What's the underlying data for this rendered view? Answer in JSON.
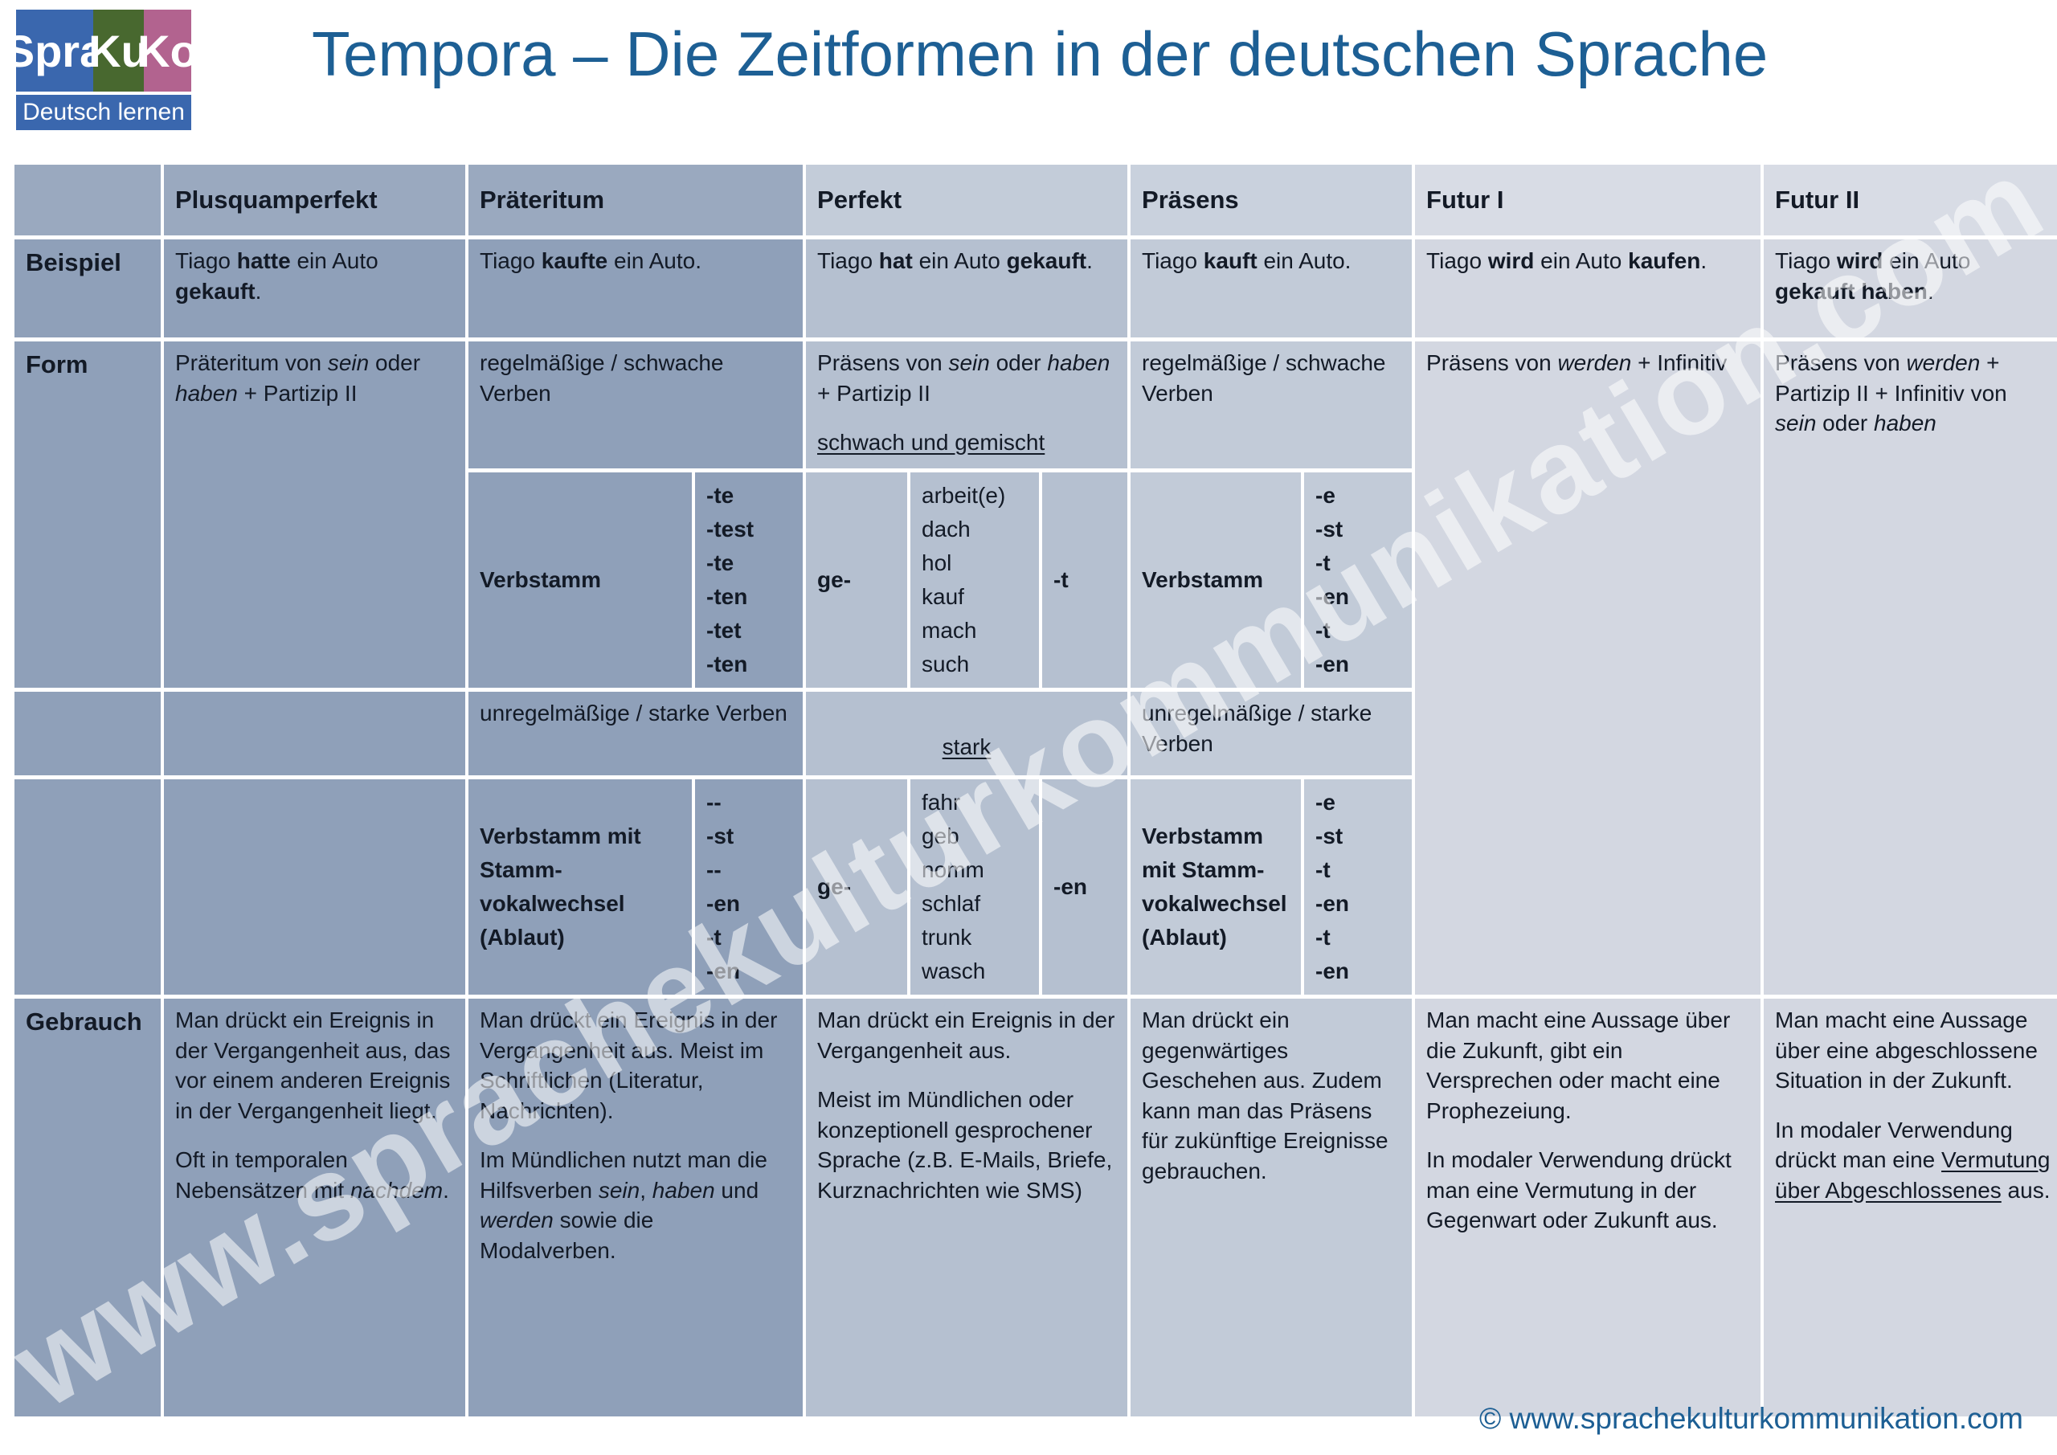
{
  "logo": {
    "part1": "Spra",
    "part2": "Ku",
    "part3": "Ko",
    "subtitle": "Deutsch lernen"
  },
  "title": "Tempora – Die Zeitformen in der deutschen Sprache",
  "watermark": "www.sprachekulturkommunikation.com",
  "footer": "© www.sprachekulturkommunikation.com",
  "colors": {
    "accent-blue": "#1d5f94",
    "text-dark": "#131a26",
    "cell-dark": "#8fa0b9",
    "cell-dark-header": "#9aa9bf",
    "cell-perfekt": "#b5c0d0",
    "cell-perfekt-header": "#c3ccd9",
    "cell-praesens": "#c2cbd8",
    "cell-praesens-header": "#c9d1dd",
    "cell-futur": "#d3d7e1",
    "cell-futur-header": "#d8dce5",
    "logo-blue": "#3a67ae",
    "logo-green": "#48682f",
    "logo-pink": "#b2638f"
  },
  "table": {
    "row_labels": {
      "beispiel": "Beispiel",
      "form": "Form",
      "gebrauch": "Gebrauch"
    },
    "columns": [
      "Plusquamperfekt",
      "Präteritum",
      "Perfekt",
      "Präsens",
      "Futur I",
      "Futur II"
    ],
    "beispiel": {
      "plusquamperfekt": [
        [
          {
            "t": "Tiago "
          },
          {
            "t": "hatte",
            "b": 1
          },
          {
            "t": " ein Auto "
          },
          {
            "t": "gekauft",
            "b": 1
          },
          {
            "t": "."
          }
        ]
      ],
      "praeteritum": [
        [
          {
            "t": "Tiago "
          },
          {
            "t": "kaufte",
            "b": 1
          },
          {
            "t": " ein Auto."
          }
        ]
      ],
      "perfekt": [
        [
          {
            "t": "Tiago "
          },
          {
            "t": "hat",
            "b": 1
          },
          {
            "t": " ein Auto "
          },
          {
            "t": "gekauft",
            "b": 1
          },
          {
            "t": "."
          }
        ]
      ],
      "praesens": [
        [
          {
            "t": "Tiago "
          },
          {
            "t": "kauft",
            "b": 1
          },
          {
            "t": " ein Auto."
          }
        ]
      ],
      "futur1": [
        [
          {
            "t": "Tiago "
          },
          {
            "t": "wird",
            "b": 1
          },
          {
            "t": " ein Auto "
          },
          {
            "t": "kaufen",
            "b": 1
          },
          {
            "t": "."
          }
        ]
      ],
      "futur2": [
        [
          {
            "t": "Tiago "
          },
          {
            "t": "wird",
            "b": 1
          },
          {
            "t": " ein Auto "
          },
          {
            "t": "gekauft haben",
            "b": 1
          },
          {
            "t": "."
          }
        ]
      ]
    },
    "form": {
      "plusquamperfekt": [
        [
          {
            "t": "Präteritum von "
          },
          {
            "t": "sein",
            "i": 1
          },
          {
            "t": " oder "
          },
          {
            "t": "haben",
            "i": 1
          },
          {
            "t": " + Partizip II"
          }
        ]
      ],
      "praeteritum": [
        [
          {
            "t": "regelmäßige / schwache Verben"
          }
        ]
      ],
      "perfekt": [
        [
          {
            "t": "Präsens von "
          },
          {
            "t": "sein",
            "i": 1
          },
          {
            "t": " oder "
          },
          {
            "t": "haben",
            "i": 1
          },
          {
            "t": " + Partizip II"
          }
        ],
        [
          {
            "t": "schwach und gemischt",
            "u": 1
          }
        ]
      ],
      "praesens": [
        [
          {
            "t": "regelmäßige / schwache Verben"
          }
        ]
      ],
      "futur1": [
        [
          {
            "t": "Präsens von "
          },
          {
            "t": "werden",
            "i": 1
          },
          {
            "t": " + Infinitiv"
          }
        ]
      ],
      "futur2": [
        [
          {
            "t": "Präsens von "
          },
          {
            "t": "werden",
            "i": 1
          },
          {
            "t": " + Partizip II + Infinitiv von "
          },
          {
            "t": "sein",
            "i": 1
          },
          {
            "t": " oder "
          },
          {
            "t": "haben",
            "i": 1
          }
        ]
      ]
    },
    "irregular": {
      "praeteritum": [
        [
          {
            "t": "unregelmäßige / starke Verben"
          }
        ]
      ],
      "perfekt": [
        [
          {
            "t": "stark",
            "u": 1
          }
        ]
      ],
      "praesens": [
        [
          {
            "t": "unregelmäßige / starke Verben"
          }
        ]
      ]
    },
    "conjugation": {
      "praeteritum_schwach": {
        "stem_label": "Verbstamm",
        "endings": [
          "-te",
          "-test",
          "-te",
          "-ten",
          "-tet",
          "-ten"
        ]
      },
      "perfekt_schwach": {
        "prefix": "ge-",
        "stems": [
          "arbeit(e)",
          "dach",
          "hol",
          "kauf",
          "mach",
          "such"
        ],
        "suffix": "-t"
      },
      "praesens_schwach": {
        "stem_label": "Verbstamm",
        "endings": [
          "-e",
          "-st",
          "-t",
          "-en",
          "-t",
          "-en"
        ]
      },
      "praeteritum_stark": {
        "stem_label": "Verbstamm mit Stamm-vokalwechsel (Ablaut)",
        "endings": [
          "--",
          "-st",
          "--",
          "-en",
          "-t",
          "-en"
        ]
      },
      "perfekt_stark": {
        "prefix": "ge-",
        "stems": [
          "fahr",
          "geb",
          "nomm",
          "schlaf",
          "trunk",
          "wasch"
        ],
        "suffix": "-en"
      },
      "praesens_stark": {
        "stem_label": "Verbstamm mit Stamm-vokalwechsel (Ablaut)",
        "endings": [
          "-e",
          "-st",
          "-t",
          "-en",
          "-t",
          "-en"
        ]
      }
    },
    "gebrauch": {
      "plusquamperfekt": [
        [
          {
            "t": "Man drückt ein Ereignis in der Vergangenheit aus, das vor einem anderen Ereignis in der Vergangenheit liegt."
          }
        ],
        [
          {
            "t": "Oft in temporalen Nebensätzen mit "
          },
          {
            "t": "nachdem",
            "i": 1
          },
          {
            "t": "."
          }
        ]
      ],
      "praeteritum": [
        [
          {
            "t": "Man drückt ein Ereignis in der Vergangenheit aus. Meist im Schriftlichen (Literatur, Nachrichten)."
          }
        ],
        [
          {
            "t": "Im Mündlichen nutzt man die Hilfsverben "
          },
          {
            "t": "sein",
            "i": 1
          },
          {
            "t": ", "
          },
          {
            "t": "haben",
            "i": 1
          },
          {
            "t": " und "
          },
          {
            "t": "werden",
            "i": 1
          },
          {
            "t": " sowie die Modalverben."
          }
        ]
      ],
      "perfekt": [
        [
          {
            "t": "Man drückt ein Ereignis in der Vergangenheit aus."
          }
        ],
        [
          {
            "t": "Meist im Mündlichen oder konzeptionell gesprochener Sprache (z.B. E-Mails, Briefe, Kurznachrichten wie SMS)"
          }
        ]
      ],
      "praesens": [
        [
          {
            "t": "Man drückt ein gegenwärtiges Geschehen aus. Zudem kann man das Präsens für zukünftige Ereignisse gebrauchen."
          }
        ]
      ],
      "futur1": [
        [
          {
            "t": "Man macht eine Aussage über die Zukunft, gibt ein Versprechen oder macht eine Prophezeiung."
          }
        ],
        [
          {
            "t": "In modaler Verwendung drückt man eine Vermutung in der Gegenwart oder Zukunft aus."
          }
        ]
      ],
      "futur2": [
        [
          {
            "t": "Man macht eine Aussage über eine abgeschlossene Situation in der Zukunft."
          }
        ],
        [
          {
            "t": "In modaler Verwendung drückt man eine "
          },
          {
            "t": "Vermutung über Abgeschlossenes",
            "u": 1
          },
          {
            "t": " aus."
          }
        ]
      ]
    }
  }
}
